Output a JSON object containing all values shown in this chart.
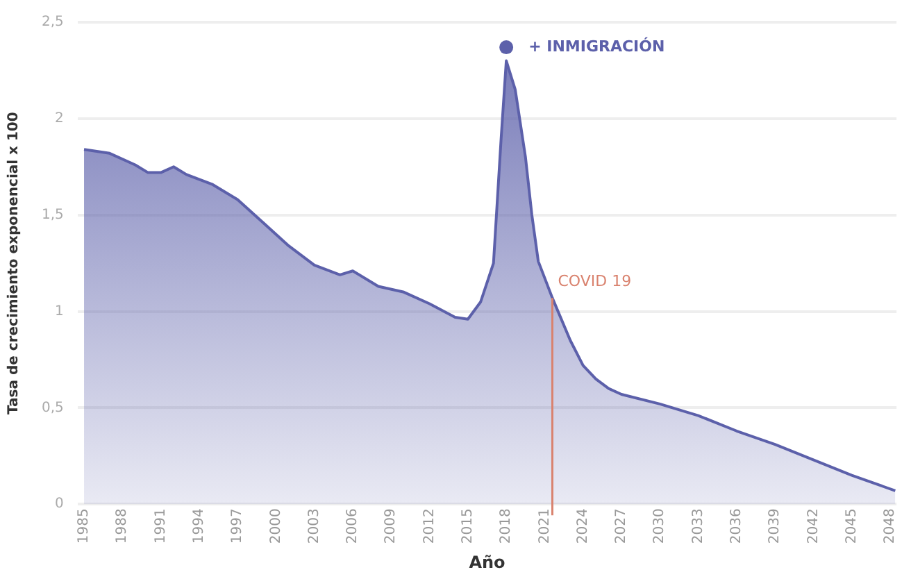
{
  "chart_data": {
    "type": "area",
    "xlabel": "Año",
    "ylabel": "Tasa de crecimiento exponencial x 100",
    "x": [
      1985,
      1987,
      1989,
      1990,
      1991,
      1992,
      1993,
      1995,
      1997,
      1999,
      2001,
      2003,
      2005,
      2006,
      2008,
      2010,
      2012,
      2014,
      2015,
      2016,
      2017,
      2017.6,
      2018,
      2018.7,
      2019.5,
      2020,
      2020.5,
      2021.6,
      2023,
      2024,
      2025,
      2026,
      2027,
      2030,
      2033,
      2036,
      2039,
      2042,
      2045,
      2048.4
    ],
    "series": [
      {
        "color": "#5c60aa",
        "values": [
          1.84,
          1.82,
          1.76,
          1.72,
          1.72,
          1.75,
          1.71,
          1.66,
          1.58,
          1.46,
          1.34,
          1.24,
          1.19,
          1.21,
          1.13,
          1.1,
          1.04,
          0.97,
          0.96,
          1.05,
          1.25,
          1.9,
          2.3,
          2.15,
          1.8,
          1.5,
          1.26,
          1.07,
          0.85,
          0.72,
          0.65,
          0.6,
          0.57,
          0.52,
          0.46,
          0.38,
          0.31,
          0.23,
          0.15,
          0.07
        ]
      }
    ],
    "xlim": [
      1984.5,
      2048.5
    ],
    "xticks": [
      1985,
      1988,
      1991,
      1994,
      1997,
      2000,
      2003,
      2006,
      2009,
      2012,
      2015,
      2018,
      2021,
      2024,
      2027,
      2030,
      2033,
      2036,
      2039,
      2042,
      2045,
      2048
    ],
    "ylim": [
      0,
      2.5
    ],
    "yticks": [
      0,
      {
        "value": 0.5,
        "label": "0,5"
      },
      1,
      {
        "value": 1.5,
        "label": "1,5"
      },
      2,
      {
        "value": 2.5,
        "label": "2,5"
      }
    ],
    "grid": "y",
    "legend": false,
    "marker": "none",
    "line_style": "solid",
    "ref_lines": [
      {
        "axis": "x",
        "value": 2021.6,
        "label": "COVID 19",
        "color": "#d9826e",
        "line_style": "solid"
      }
    ],
    "annotations": [
      {
        "text": "+ INMIGRACIÓN",
        "x": 2018,
        "y": 2.37
      }
    ]
  }
}
